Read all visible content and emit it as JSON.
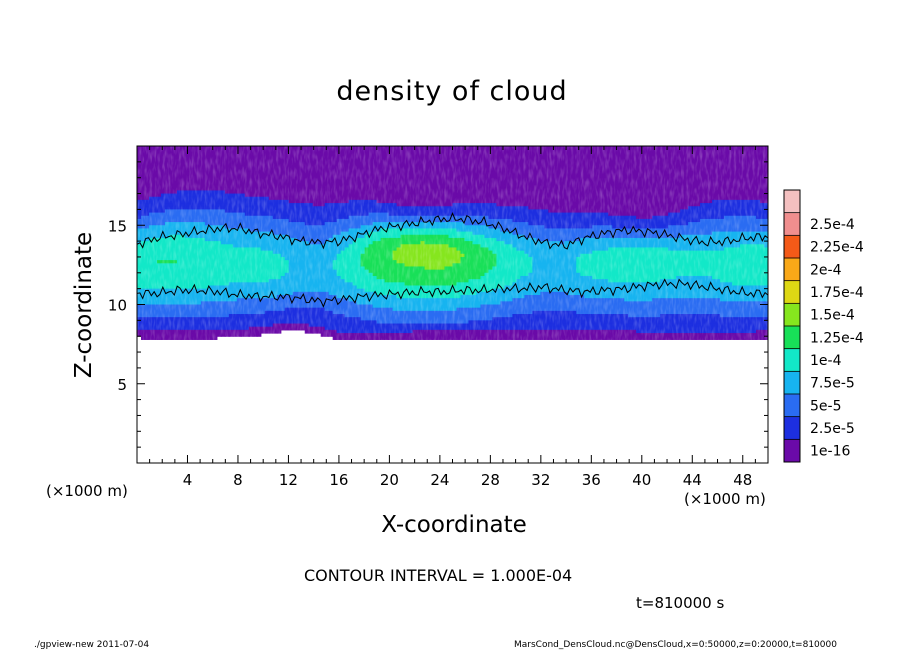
{
  "chart_data": {
    "type": "heatmap",
    "title": "density of cloud",
    "xlabel": "X-coordinate",
    "ylabel": "Z-coordinate",
    "x_unit_label": "(×1000 m)",
    "xlim": [
      0,
      50
    ],
    "ylim": [
      0,
      20
    ],
    "x_ticks": [
      4,
      8,
      12,
      16,
      20,
      24,
      28,
      32,
      36,
      40,
      44,
      48
    ],
    "y_ticks": [
      5,
      10,
      15
    ],
    "colorbar": {
      "levels": [
        "1e-16",
        "2.5e-5",
        "5e-5",
        "7.5e-5",
        "1e-4",
        "1.25e-4",
        "1.5e-4",
        "1.75e-4",
        "2e-4",
        "2.25e-4",
        "2.5e-4"
      ],
      "colors": [
        "#6a0aa8",
        "#1d2fe0",
        "#2a6cf2",
        "#17b4f0",
        "#12e8c8",
        "#18e058",
        "#86e61e",
        "#ded814",
        "#f9a818",
        "#f45a18",
        "#f08e8e",
        "#f4c0c0"
      ]
    },
    "contour_interval": "CONTOUR INTERVAL = 1.000E-04",
    "cloud_base_z": [
      7.9,
      7.9,
      7.9,
      7.9,
      7.9,
      8.0,
      8.1,
      8.3,
      8.4,
      8.1,
      7.8,
      7.8,
      7.8,
      7.8,
      7.9,
      7.9,
      7.9,
      7.9,
      7.9,
      7.9,
      7.9,
      7.9,
      7.9,
      7.9,
      7.9,
      7.8,
      7.8,
      7.8,
      7.8,
      7.8,
      7.8,
      7.9
    ],
    "cloud_top_z": [
      17.6,
      18.0,
      18.3,
      18.6,
      18.6,
      18.4,
      18.2,
      18.1,
      18.0,
      17.9,
      17.8,
      17.5,
      17.2,
      16.8,
      16.6,
      16.8,
      17.0,
      17.2,
      17.3,
      17.4,
      17.3,
      17.1,
      16.9,
      16.7,
      16.5,
      16.2,
      16.6,
      17.2,
      17.8,
      18.0,
      17.9,
      17.6
    ],
    "contour_top_z": [
      13.8,
      14.2,
      14.4,
      14.6,
      14.8,
      14.8,
      14.5,
      14.3,
      14.0,
      13.9,
      14.0,
      14.4,
      14.8,
      15.0,
      15.2,
      15.4,
      15.4,
      15.2,
      14.8,
      14.3,
      13.9,
      13.7,
      14.2,
      14.5,
      14.7,
      14.6,
      14.4,
      14.1,
      13.9,
      14.0,
      14.2,
      14.3
    ],
    "contour_bottom_z": [
      10.7,
      10.7,
      10.9,
      10.9,
      10.8,
      10.6,
      10.5,
      10.5,
      10.4,
      10.2,
      10.3,
      10.5,
      10.6,
      10.7,
      10.8,
      10.8,
      10.9,
      10.9,
      11.0,
      11.0,
      11.1,
      10.9,
      10.8,
      10.9,
      11.0,
      11.2,
      11.3,
      11.3,
      11.1,
      10.9,
      10.7,
      10.7
    ],
    "peak_density_z": [
      12.5,
      12.7,
      12.7,
      12.6,
      12.5,
      12.5,
      12.4,
      12.4,
      12.3,
      12.3,
      12.6,
      12.9,
      13.2,
      13.3,
      13.4,
      13.3,
      13.1,
      12.9,
      12.7,
      12.6,
      12.5,
      12.5,
      12.6,
      12.7,
      12.8,
      12.8,
      12.8,
      12.7,
      12.6,
      12.5,
      12.5,
      12.5
    ],
    "peak_density": [
      0.00012,
      0.000125,
      0.000125,
      0.00012,
      0.000115,
      0.00011,
      0.00011,
      0.000105,
      9.5e-05,
      9e-05,
      0.000105,
      0.000125,
      0.000145,
      0.000155,
      0.00016,
      0.00016,
      0.00015,
      0.000135,
      0.00012,
      0.000105,
      9.5e-05,
      9.5e-05,
      0.000105,
      0.00011,
      0.000115,
      0.000115,
      0.00011,
      0.000105,
      0.000105,
      0.00011,
      0.000115,
      0.000115
    ],
    "time_label": "t=810000 s"
  },
  "footer": {
    "left": "./gpview-new  2011-07-04",
    "right": "MarsCond_DensCloud.nc@DensCloud,x=0:50000,z=0:20000,t=810000"
  }
}
